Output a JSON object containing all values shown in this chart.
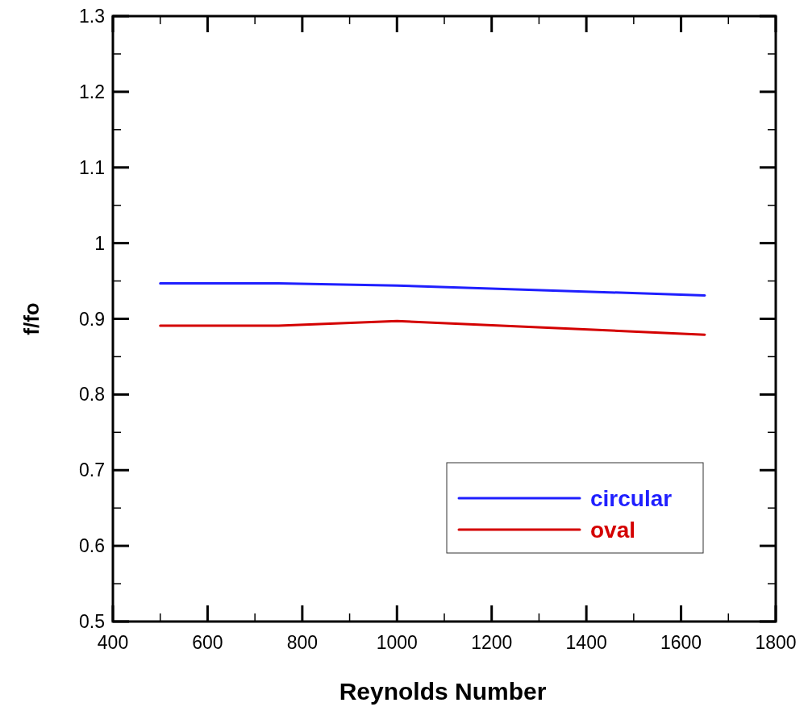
{
  "chart_data": {
    "type": "line",
    "xlabel": "Reynolds Number",
    "ylabel": "f/fo",
    "x": [
      500,
      750,
      1000,
      1650
    ],
    "series": [
      {
        "name": "circular",
        "color": "#1f1fff",
        "values": [
          0.947,
          0.947,
          0.944,
          0.931
        ]
      },
      {
        "name": "oval",
        "color": "#d40000",
        "values": [
          0.891,
          0.891,
          0.897,
          0.879
        ]
      }
    ],
    "xlim": [
      400,
      1800
    ],
    "xticks": [
      400,
      600,
      800,
      1000,
      1200,
      1400,
      1600,
      1800
    ],
    "ylim": [
      0.5,
      1.3
    ],
    "yticks": [
      0.5,
      0.6,
      0.7,
      0.8,
      0.9,
      {
        "value": 1,
        "label": "1"
      },
      1.1,
      1.2,
      1.3
    ],
    "grid": false,
    "legend": "bottom right",
    "marker": "none",
    "line_style": "solid"
  }
}
